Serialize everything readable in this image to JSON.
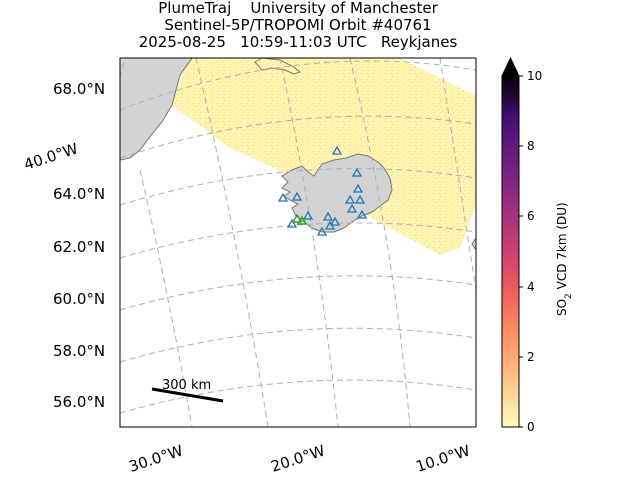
{
  "title": {
    "line1": "PlumeTraj    University of Manchester",
    "line2": "Sentinel-5P/TROPOMI Orbit #40761",
    "line3": "2025-08-25   10:59-11:03 UTC   Reykjanes"
  },
  "map": {
    "lat_labels": [
      "68.0°N",
      "64.0°N",
      "62.0°N",
      "60.0°N",
      "58.0°N",
      "56.0°N"
    ],
    "lon_labels": [
      "30.0°W",
      "20.0°W",
      "10.0°W"
    ],
    "lon_label_left": "40.0°W",
    "scale_bar_label": "300 km",
    "land_color": "#d3d3d3",
    "coast_color": "#777777",
    "swath_color": "#fdf5b0",
    "volcano_marker_color": "#1f77b4",
    "vent_marker_color": "#2ca02c"
  },
  "colorbar": {
    "label": "SO",
    "label_sub": "2",
    "label_rest": " VCD 7km (DU)",
    "ticks": [
      "0",
      "2",
      "4",
      "6",
      "8",
      "10"
    ],
    "min": 0,
    "max": 10,
    "extend": "max",
    "colormap": "magma_r"
  }
}
